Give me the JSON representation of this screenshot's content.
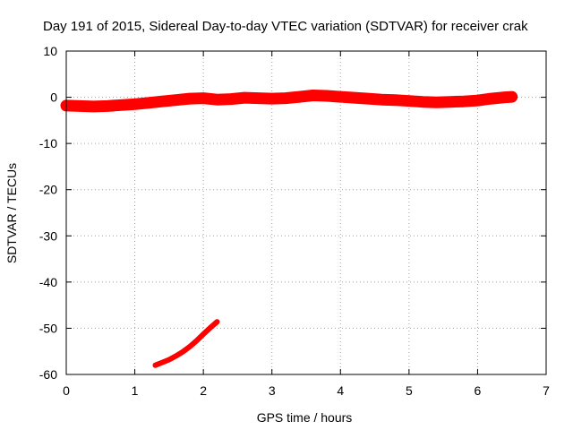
{
  "chart_data": {
    "type": "line",
    "title": "Day 191 of 2015, Sidereal Day-to-day VTEC variation (SDTVAR) for receiver crak",
    "xlabel": "GPS time / hours",
    "ylabel": "SDTVAR / TECUs",
    "xlim": [
      0,
      7
    ],
    "ylim": [
      -60,
      10
    ],
    "xticks": [
      0,
      1,
      2,
      3,
      4,
      5,
      6,
      7
    ],
    "yticks": [
      -60,
      -50,
      -40,
      -30,
      -20,
      -10,
      0,
      10
    ],
    "grid": true,
    "legend": "none",
    "color": "#ff0000",
    "series": [
      {
        "x": [
          0.0,
          0.2,
          0.4,
          0.6,
          0.8,
          1.0,
          1.2,
          1.4,
          1.6,
          1.8,
          2.0,
          2.2,
          2.4,
          2.6,
          2.8,
          3.0,
          3.2,
          3.4,
          3.6,
          3.8,
          4.0,
          4.2,
          4.4,
          4.6,
          4.8,
          5.0,
          5.2,
          5.4,
          5.6,
          5.8,
          6.0,
          6.2,
          6.4,
          6.5
        ],
        "y": [
          -1.8,
          -1.9,
          -2.0,
          -1.9,
          -1.7,
          -1.5,
          -1.2,
          -0.9,
          -0.6,
          -0.3,
          -0.2,
          -0.5,
          -0.4,
          -0.1,
          -0.2,
          -0.3,
          -0.2,
          0.1,
          0.4,
          0.3,
          0.1,
          -0.1,
          -0.3,
          -0.5,
          -0.6,
          -0.8,
          -1.0,
          -1.1,
          -1.0,
          -0.9,
          -0.7,
          -0.3,
          0.0,
          0.1
        ]
      },
      {
        "x": [
          1.3,
          1.4,
          1.5,
          1.6,
          1.7,
          1.8,
          1.9,
          2.0,
          2.1,
          2.2
        ],
        "y": [
          -58.0,
          -57.4,
          -56.8,
          -56.0,
          -55.1,
          -54.0,
          -52.7,
          -51.3,
          -49.9,
          -48.6
        ]
      }
    ]
  }
}
